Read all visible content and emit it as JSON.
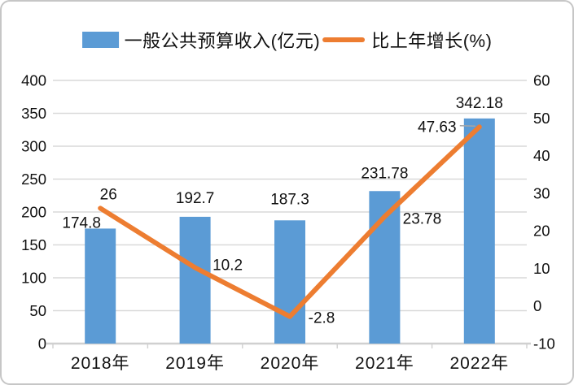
{
  "legend": {
    "series1": "一般公共预算收入(亿元)",
    "series2": "比上年增长(%)"
  },
  "colors": {
    "bar": "#5B9BD5",
    "line": "#ED7D31",
    "grid": "#D9D9D9",
    "axis_line": "#D0D0D0",
    "text": "#111111",
    "leader": "#A6A6A6",
    "frame_border": "#C6C6C6",
    "background": "#FFFFFF"
  },
  "chart_data": {
    "type": "combo_bar_line",
    "title": "",
    "categories": [
      "2018年",
      "2019年",
      "2020年",
      "2021年",
      "2022年"
    ],
    "series": [
      {
        "name": "一般公共预算收入(亿元)",
        "chart_type": "bar",
        "axis": "left",
        "color": "#5B9BD5",
        "values": [
          174.8,
          192.7,
          187.3,
          231.78,
          342.18
        ],
        "data_labels": [
          "174.8",
          "192.7",
          "187.3",
          "231.78",
          "342.18"
        ]
      },
      {
        "name": "比上年增长(%)",
        "chart_type": "line",
        "axis": "right",
        "color": "#ED7D31",
        "values": [
          26,
          10.2,
          -2.8,
          23.78,
          47.63
        ],
        "data_labels": [
          "26",
          "10.2",
          "-2.8",
          "23.78",
          "47.63"
        ]
      }
    ],
    "left_axis": {
      "min": 0,
      "max": 400,
      "tick_step": 50,
      "tick_labels": [
        "400",
        "350",
        "300",
        "250",
        "200",
        "150",
        "100",
        "50",
        "0"
      ]
    },
    "right_axis": {
      "min": -10,
      "max": 60,
      "tick_step": 10,
      "tick_labels": [
        "60",
        "50",
        "40",
        "30",
        "20",
        "10",
        "0",
        "-10"
      ]
    },
    "gridlines": "horizontal-from-left-axis",
    "legend_position": "top"
  }
}
